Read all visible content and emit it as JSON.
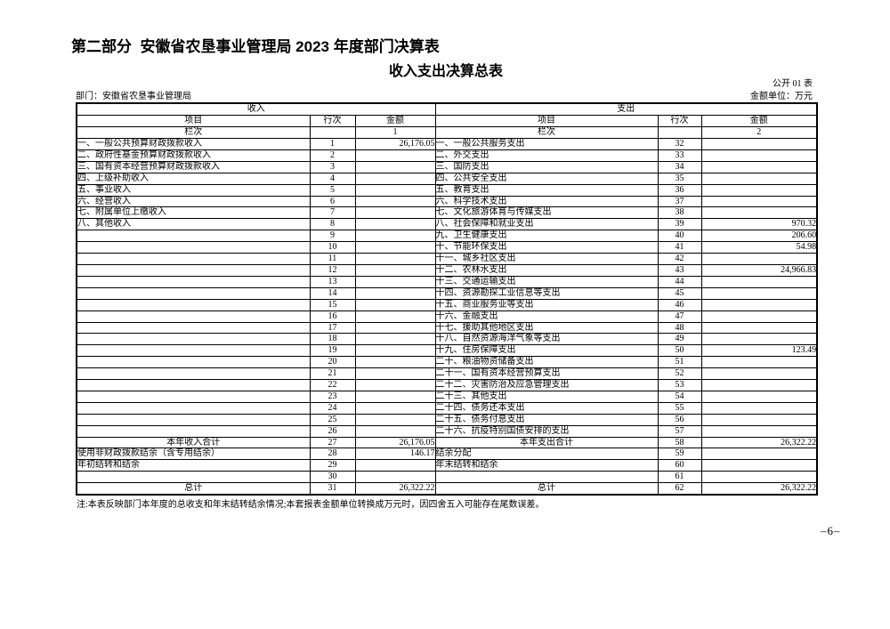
{
  "page": {
    "title": "第二部分  安徽省农垦事业管理局 2023 年度部门决算表",
    "subtitle": "收入支出决算总表",
    "table_code": "公开 01 表",
    "unit_label": "金额单位：万元",
    "department_label": "部门：安徽省农垦事业管理局",
    "note": "注:本表反映部门本年度的总收支和年末结转结余情况;本套报表金额单位转换成万元时，因四舍五入可能存在尾数误差。",
    "page_number": "–6–"
  },
  "table": {
    "income_header": "收入",
    "expense_header": "支出",
    "col_item": "项目",
    "col_line": "行次",
    "col_amount": "金额",
    "col_index_label": "栏次",
    "income_col_index": "1",
    "expense_col_index": "2",
    "rows": [
      {
        "in_item": "一、一般公共预算财政拨款收入",
        "in_line": "1",
        "in_amt": "26,176.05",
        "ex_item": "一、一般公共服务支出",
        "ex_line": "32",
        "ex_amt": ""
      },
      {
        "in_item": "二、政府性基金预算财政拨款收入",
        "in_line": "2",
        "in_amt": "",
        "ex_item": "二、外交支出",
        "ex_line": "33",
        "ex_amt": ""
      },
      {
        "in_item": "三、国有资本经营预算财政拨款收入",
        "in_line": "3",
        "in_amt": "",
        "ex_item": "三、国防支出",
        "ex_line": "34",
        "ex_amt": ""
      },
      {
        "in_item": "四、上级补助收入",
        "in_line": "4",
        "in_amt": "",
        "ex_item": "四、公共安全支出",
        "ex_line": "35",
        "ex_amt": ""
      },
      {
        "in_item": "五、事业收入",
        "in_line": "5",
        "in_amt": "",
        "ex_item": "五、教育支出",
        "ex_line": "36",
        "ex_amt": ""
      },
      {
        "in_item": "六、经营收入",
        "in_line": "6",
        "in_amt": "",
        "ex_item": "六、科学技术支出",
        "ex_line": "37",
        "ex_amt": ""
      },
      {
        "in_item": "七、附属单位上缴收入",
        "in_line": "7",
        "in_amt": "",
        "ex_item": "七、文化旅游体育与传媒支出",
        "ex_line": "38",
        "ex_amt": ""
      },
      {
        "in_item": "八、其他收入",
        "in_line": "8",
        "in_amt": "",
        "ex_item": "八、社会保障和就业支出",
        "ex_line": "39",
        "ex_amt": "970.32"
      },
      {
        "in_item": "",
        "in_line": "9",
        "in_amt": "",
        "ex_item": "九、卫生健康支出",
        "ex_line": "40",
        "ex_amt": "206.60"
      },
      {
        "in_item": "",
        "in_line": "10",
        "in_amt": "",
        "ex_item": "十、节能环保支出",
        "ex_line": "41",
        "ex_amt": "54.98"
      },
      {
        "in_item": "",
        "in_line": "11",
        "in_amt": "",
        "ex_item": "十一、城乡社区支出",
        "ex_line": "42",
        "ex_amt": ""
      },
      {
        "in_item": "",
        "in_line": "12",
        "in_amt": "",
        "ex_item": "十二、农林水支出",
        "ex_line": "43",
        "ex_amt": "24,966.83"
      },
      {
        "in_item": "",
        "in_line": "13",
        "in_amt": "",
        "ex_item": "十三、交通运输支出",
        "ex_line": "44",
        "ex_amt": ""
      },
      {
        "in_item": "",
        "in_line": "14",
        "in_amt": "",
        "ex_item": "十四、资源勘探工业信息等支出",
        "ex_line": "45",
        "ex_amt": ""
      },
      {
        "in_item": "",
        "in_line": "15",
        "in_amt": "",
        "ex_item": "十五、商业服务业等支出",
        "ex_line": "46",
        "ex_amt": ""
      },
      {
        "in_item": "",
        "in_line": "16",
        "in_amt": "",
        "ex_item": "十六、金融支出",
        "ex_line": "47",
        "ex_amt": ""
      },
      {
        "in_item": "",
        "in_line": "17",
        "in_amt": "",
        "ex_item": "十七、援助其他地区支出",
        "ex_line": "48",
        "ex_amt": ""
      },
      {
        "in_item": "",
        "in_line": "18",
        "in_amt": "",
        "ex_item": "十八、自然资源海洋气象等支出",
        "ex_line": "49",
        "ex_amt": ""
      },
      {
        "in_item": "",
        "in_line": "19",
        "in_amt": "",
        "ex_item": "十九、住房保障支出",
        "ex_line": "50",
        "ex_amt": "123.49"
      },
      {
        "in_item": "",
        "in_line": "20",
        "in_amt": "",
        "ex_item": "二十、粮油物资储备支出",
        "ex_line": "51",
        "ex_amt": ""
      },
      {
        "in_item": "",
        "in_line": "21",
        "in_amt": "",
        "ex_item": "二十一、国有资本经营预算支出",
        "ex_line": "52",
        "ex_amt": ""
      },
      {
        "in_item": "",
        "in_line": "22",
        "in_amt": "",
        "ex_item": "二十二、灾害防治及应急管理支出",
        "ex_line": "53",
        "ex_amt": ""
      },
      {
        "in_item": "",
        "in_line": "23",
        "in_amt": "",
        "ex_item": "二十三、其他支出",
        "ex_line": "54",
        "ex_amt": ""
      },
      {
        "in_item": "",
        "in_line": "24",
        "in_amt": "",
        "ex_item": "二十四、债务还本支出",
        "ex_line": "55",
        "ex_amt": ""
      },
      {
        "in_item": "",
        "in_line": "25",
        "in_amt": "",
        "ex_item": "二十五、债务付息支出",
        "ex_line": "56",
        "ex_amt": ""
      },
      {
        "in_item": "",
        "in_line": "26",
        "in_amt": "",
        "ex_item": "二十六、抗疫特别国债安排的支出",
        "ex_line": "57",
        "ex_amt": ""
      },
      {
        "in_item": "本年收入合计",
        "in_total": true,
        "in_line": "27",
        "in_amt": "26,176.05",
        "ex_item": "本年支出合计",
        "ex_total": true,
        "ex_line": "58",
        "ex_amt": "26,322.22"
      },
      {
        "in_item": "使用非财政拨款结余（含专用结余）",
        "in_line": "28",
        "in_amt": "146.17",
        "ex_item": "结余分配",
        "ex_line": "59",
        "ex_amt": ""
      },
      {
        "in_item": "年初结转和结余",
        "in_line": "29",
        "in_amt": "",
        "ex_item": "年末结转和结余",
        "ex_line": "60",
        "ex_amt": ""
      },
      {
        "in_item": "",
        "in_line": "30",
        "in_amt": "",
        "ex_item": "",
        "ex_line": "61",
        "ex_amt": ""
      },
      {
        "in_item": "总计",
        "in_total": true,
        "in_line": "31",
        "in_amt": "26,322.22",
        "ex_item": "总计",
        "ex_total": true,
        "ex_line": "62",
        "ex_amt": "26,322.22"
      }
    ]
  }
}
